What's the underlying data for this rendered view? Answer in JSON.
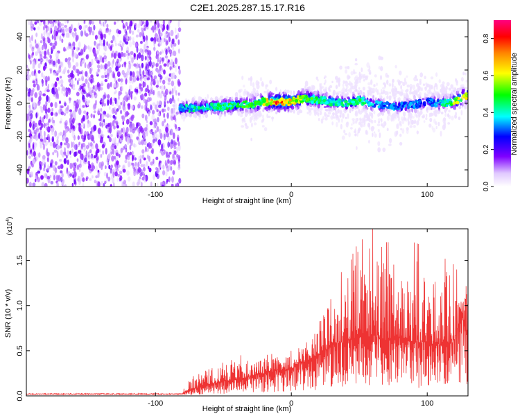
{
  "title": "C2E1.2025.287.15.17.R16",
  "chart_data": [
    {
      "type": "heatmap",
      "xlabel": "Height of straight line (km)",
      "ylabel": "Frequency (Hz)",
      "xlim": [
        -195,
        130
      ],
      "ylim": [
        -50,
        50
      ],
      "xticks": [
        -100,
        0,
        100
      ],
      "yticks": [
        -40,
        -20,
        0,
        20,
        40
      ],
      "colorbar": {
        "label": "Normalized spectral amplitude",
        "range": [
          0.0,
          0.9
        ],
        "ticks": [
          0.0,
          0.2,
          0.4,
          0.6,
          0.8
        ],
        "colormap": [
          "#ff0000",
          "#ff8800",
          "#ffff00",
          "#00ff00",
          "#00ffff",
          "#0000ff",
          "#7f00ff",
          "#ff00ff"
        ]
      },
      "noise_region_x": [
        -195,
        -82
      ],
      "ridge": {
        "x": [
          -82,
          -70,
          -60,
          -50,
          -40,
          -30,
          -20,
          -10,
          0,
          10,
          20,
          30,
          40,
          50,
          60,
          70,
          80,
          90,
          100,
          110,
          118,
          125,
          130
        ],
        "frequency": [
          -3,
          -3,
          -2,
          -2,
          -1,
          -1,
          1,
          1,
          1,
          3,
          2,
          1,
          0,
          2,
          -1,
          -1,
          -2,
          -1,
          1,
          0,
          1,
          3,
          5
        ],
        "amplitude": [
          0.4,
          0.45,
          0.45,
          0.5,
          0.5,
          0.55,
          0.62,
          0.85,
          0.75,
          0.55,
          0.5,
          0.45,
          0.45,
          0.5,
          0.4,
          0.35,
          0.35,
          0.35,
          0.35,
          0.4,
          0.55,
          0.7,
          0.6
        ]
      },
      "spread_hz": [
        {
          "x": -82,
          "value": 5
        },
        {
          "x": -40,
          "value": 6
        },
        {
          "x": -35,
          "value": 20
        },
        {
          "x": 0,
          "value": 5
        },
        {
          "x": 20,
          "value": 12
        },
        {
          "x": 45,
          "value": 24
        },
        {
          "x": 60,
          "value": 28
        },
        {
          "x": 80,
          "value": 20
        },
        {
          "x": 100,
          "value": 16
        },
        {
          "x": 130,
          "value": 12
        }
      ]
    },
    {
      "type": "line",
      "xlabel": "Height of straight line (km)",
      "ylabel": "SNR (10 * v/v)",
      "y_multiplier": "(x10",
      "y_multiplier_exp": "4",
      "y_multiplier_close": ")",
      "xlim": [
        -195,
        130
      ],
      "ylim": [
        0,
        1.85
      ],
      "xticks": [
        -100,
        0,
        100
      ],
      "yticks": [
        0,
        0.5,
        1.0,
        1.5
      ],
      "ytick_labels": [
        "0.0",
        "0.5",
        "1.0",
        "1.5"
      ],
      "line_color": "#ee3333",
      "series": [
        {
          "name": "SNR",
          "x": [
            -195,
            -100,
            -80,
            -75,
            -60,
            -40,
            -20,
            0,
            10,
            20,
            30,
            40,
            50,
            60,
            70,
            80,
            90,
            100,
            110,
            120,
            125,
            130
          ],
          "median": [
            0.02,
            0.02,
            0.03,
            0.06,
            0.13,
            0.18,
            0.25,
            0.3,
            0.38,
            0.45,
            0.55,
            0.6,
            0.65,
            0.65,
            0.62,
            0.62,
            0.6,
            0.58,
            0.55,
            0.6,
            0.9,
            0.7
          ],
          "peak": [
            0.03,
            0.03,
            0.05,
            0.2,
            0.3,
            0.45,
            0.45,
            0.5,
            0.6,
            0.8,
            1.1,
            1.5,
            1.7,
            1.85,
            1.7,
            1.8,
            1.7,
            1.65,
            1.55,
            1.45,
            1.3,
            1.2
          ]
        }
      ]
    }
  ]
}
